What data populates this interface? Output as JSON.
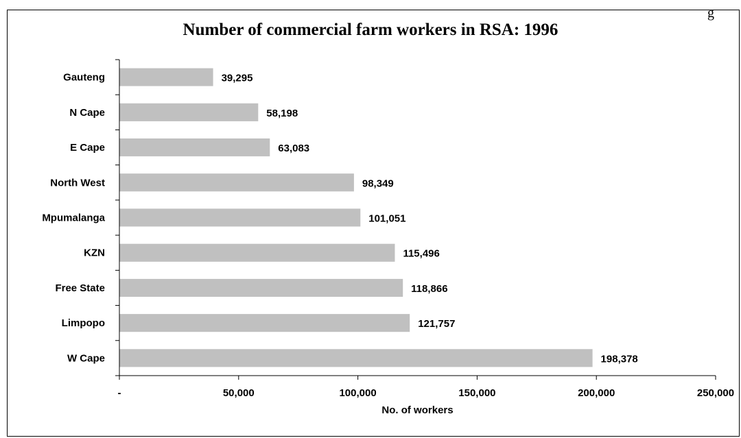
{
  "page": {
    "corner_text": "g"
  },
  "chart_data": {
    "type": "bar",
    "orientation": "horizontal",
    "title": "Number of commercial farm workers in RSA: 1996",
    "xlabel": "No. of workers",
    "ylabel": "",
    "categories": [
      "Gauteng",
      "N Cape",
      "E Cape",
      "North West",
      "Mpumalanga",
      "KZN",
      "Free State",
      "Limpopo",
      "W Cape"
    ],
    "values": [
      39295,
      58198,
      63083,
      98349,
      101051,
      115496,
      118866,
      121757,
      198378
    ],
    "value_labels": [
      "39,295",
      "58,198",
      "63,083",
      "98,349",
      "101,051",
      "115,496",
      "118,866",
      "121,757",
      "198,378"
    ],
    "xlim": [
      0,
      250000
    ],
    "x_ticks": [
      0,
      50000,
      100000,
      150000,
      200000,
      250000
    ],
    "x_tick_labels": [
      "-",
      "50,000",
      "100,000",
      "150,000",
      "200,000",
      "250,000"
    ],
    "bar_color": "#c0c0c0",
    "grid": false,
    "legend": "none"
  }
}
